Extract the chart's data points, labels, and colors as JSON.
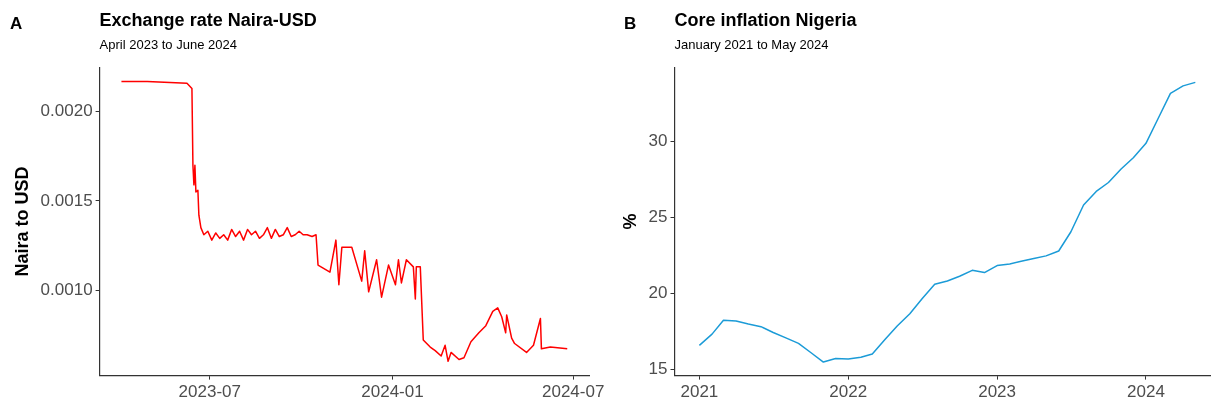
{
  "chart_data": [
    {
      "type": "line",
      "title": "Exchange rate Naira-USD",
      "subtitle": "April 2023 to June 2024",
      "ylabel": "Naira to USD",
      "annotations": [
        "A"
      ],
      "grid": false,
      "legend": false,
      "xlim": [
        "2023-03-12",
        "2024-07-17"
      ],
      "xticks": [
        {
          "value": "2023-07-01",
          "label": "2023-07"
        },
        {
          "value": "2024-01-01",
          "label": "2024-01"
        },
        {
          "value": "2024-07-01",
          "label": "2024-07"
        }
      ],
      "ylim": [
        0.00052,
        0.00225
      ],
      "yticks": [
        {
          "value": 0.001,
          "label": "0.0010"
        },
        {
          "value": 0.0015,
          "label": "0.0015"
        },
        {
          "value": 0.002,
          "label": "0.0020"
        }
      ],
      "series": [
        {
          "color": "#ff0000",
          "x": [
            "2023-04-03",
            "2023-04-29",
            "2023-06-08",
            "2023-06-13",
            "2023-06-14",
            "2023-06-15",
            "2023-06-16",
            "2023-06-17",
            "2023-06-19",
            "2023-06-20",
            "2023-06-22",
            "2023-06-25",
            "2023-06-29",
            "2023-07-03",
            "2023-07-07",
            "2023-07-11",
            "2023-07-15",
            "2023-07-19",
            "2023-07-23",
            "2023-07-27",
            "2023-07-31",
            "2023-08-04",
            "2023-08-08",
            "2023-08-12",
            "2023-08-16",
            "2023-08-20",
            "2023-08-24",
            "2023-08-28",
            "2023-09-01",
            "2023-09-05",
            "2023-09-09",
            "2023-09-13",
            "2023-09-17",
            "2023-09-21",
            "2023-09-25",
            "2023-09-29",
            "2023-10-03",
            "2023-10-07",
            "2023-10-12",
            "2023-10-16",
            "2023-10-18",
            "2023-10-30",
            "2023-11-05",
            "2023-11-08",
            "2023-11-11",
            "2023-11-21",
            "2023-12-01",
            "2023-12-04",
            "2023-12-08",
            "2023-12-16",
            "2023-12-21",
            "2023-12-28",
            "2024-01-04",
            "2024-01-07",
            "2024-01-10",
            "2024-01-15",
            "2024-01-22",
            "2024-01-24",
            "2024-01-25",
            "2024-01-29",
            "2024-02-01",
            "2024-02-08",
            "2024-02-13",
            "2024-02-19",
            "2024-02-23",
            "2024-02-26",
            "2024-02-29",
            "2024-03-08",
            "2024-03-13",
            "2024-03-20",
            "2024-03-28",
            "2024-04-04",
            "2024-04-11",
            "2024-04-16",
            "2024-04-20",
            "2024-04-24",
            "2024-04-25",
            "2024-04-30",
            "2024-05-03",
            "2024-05-15",
            "2024-05-22",
            "2024-05-29",
            "2024-05-30",
            "2024-06-08",
            "2024-06-25"
          ],
          "values": [
            0.00217,
            0.00217,
            0.00216,
            0.00213,
            0.0017,
            0.00159,
            0.0017,
            0.00155,
            0.00156,
            0.00142,
            0.00135,
            0.00131,
            0.00133,
            0.00128,
            0.00132,
            0.00129,
            0.00131,
            0.00128,
            0.00134,
            0.0013,
            0.00133,
            0.00128,
            0.00134,
            0.00131,
            0.00133,
            0.00129,
            0.00131,
            0.00135,
            0.00129,
            0.00134,
            0.0013,
            0.00131,
            0.00135,
            0.0013,
            0.00131,
            0.00133,
            0.00131,
            0.00131,
            0.0013,
            0.00131,
            0.00114,
            0.0011,
            0.00128,
            0.00103,
            0.00124,
            0.00124,
            0.00105,
            0.00122,
            0.00099,
            0.00117,
            0.00096,
            0.00114,
            0.00103,
            0.00117,
            0.00104,
            0.00117,
            0.00113,
            0.00095,
            0.00113,
            0.00113,
            0.00072,
            0.00068,
            0.00066,
            0.00063,
            0.00069,
            0.0006,
            0.00065,
            0.00061,
            0.00062,
            0.00071,
            0.00076,
            0.0008,
            0.00088,
            0.0009,
            0.00085,
            0.00076,
            0.00086,
            0.00073,
            0.0007,
            0.00065,
            0.00069,
            0.00084,
            0.00067,
            0.00068,
            0.00067
          ]
        }
      ]
    },
    {
      "type": "line",
      "title": "Core inflation Nigeria",
      "subtitle": "January 2021 to May 2024",
      "ylabel": "%",
      "annotations": [
        "B"
      ],
      "grid": false,
      "legend": false,
      "xlim": [
        "2020-11-01",
        "2024-06-06"
      ],
      "xticks": [
        {
          "value": "2021-01-01",
          "label": "2021"
        },
        {
          "value": "2022-01-01",
          "label": "2022"
        },
        {
          "value": "2023-01-01",
          "label": "2023"
        },
        {
          "value": "2024-01-01",
          "label": "2024"
        }
      ],
      "ylim": [
        14.6,
        34.9
      ],
      "yticks": [
        15,
        20,
        25,
        30
      ],
      "series": [
        {
          "color": "#1b9bd7",
          "x": [
            "2021-01",
            "2021-02",
            "2021-03",
            "2021-04",
            "2021-05",
            "2021-06",
            "2021-07",
            "2021-08",
            "2021-09",
            "2021-10",
            "2021-11",
            "2021-12",
            "2022-01",
            "2022-02",
            "2022-03",
            "2022-04",
            "2022-05",
            "2022-06",
            "2022-07",
            "2022-08",
            "2022-09",
            "2022-10",
            "2022-11",
            "2022-12",
            "2023-01",
            "2023-02",
            "2023-03",
            "2023-04",
            "2023-05",
            "2023-06",
            "2023-07",
            "2023-08",
            "2023-09",
            "2023-10",
            "2023-11",
            "2023-12",
            "2024-01",
            "2024-02",
            "2024-03",
            "2024-04",
            "2024-05"
          ],
          "values": [
            16.59,
            17.33,
            18.24,
            18.2,
            17.99,
            17.82,
            17.44,
            17.08,
            16.72,
            16.12,
            15.49,
            15.72,
            15.7,
            15.81,
            16.02,
            16.97,
            17.86,
            18.67,
            19.66,
            20.61,
            20.83,
            21.14,
            21.53,
            21.38,
            21.84,
            21.95,
            22.12,
            22.31,
            22.48,
            22.8,
            24.07,
            25.83,
            26.72,
            27.31,
            28.2,
            28.94,
            29.89,
            31.59,
            33.18,
            33.67,
            33.9
          ]
        }
      ]
    }
  ]
}
